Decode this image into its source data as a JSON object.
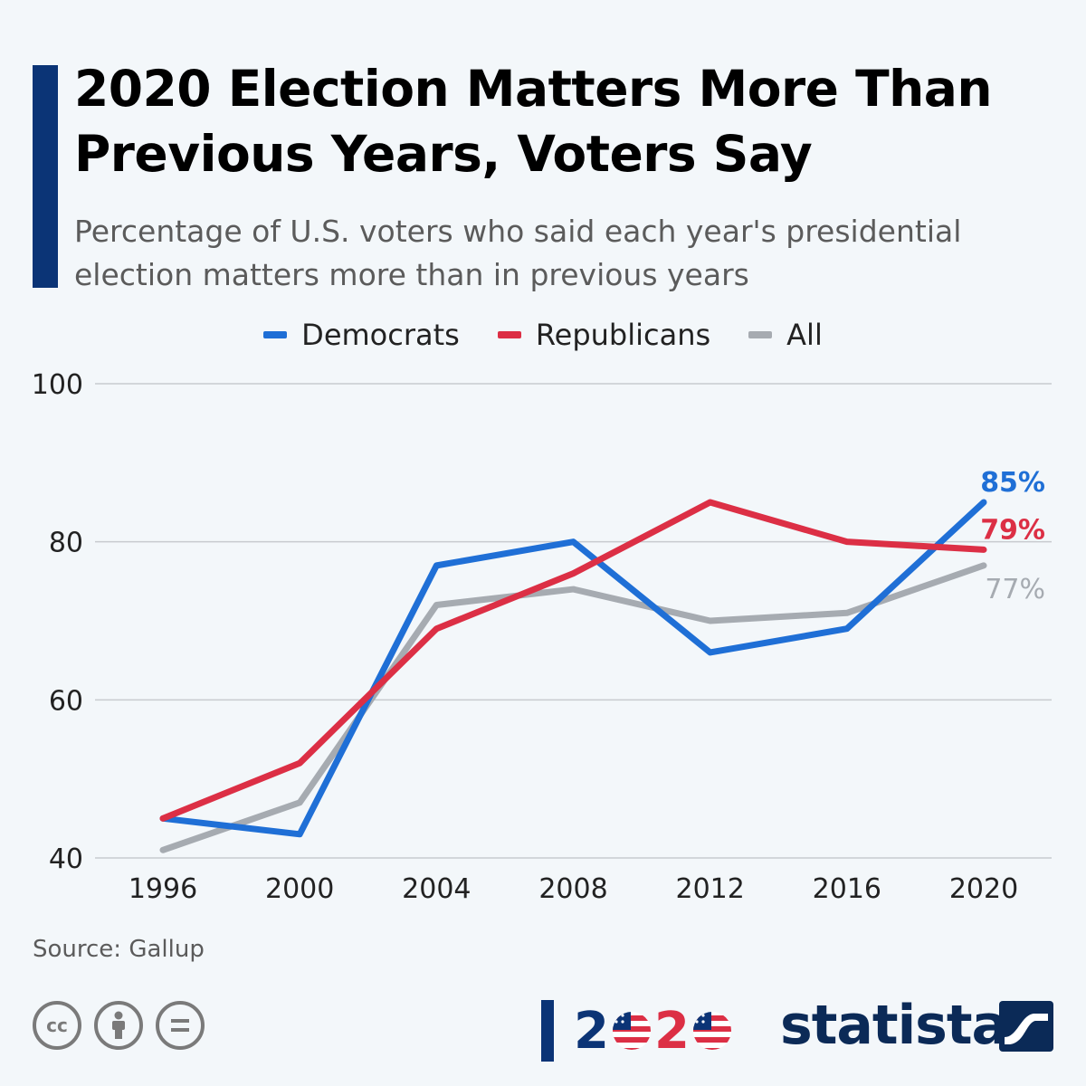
{
  "title": "2020 Election Matters More Than Previous Years, Voters Say",
  "subtitle": "Percentage of U.S. voters who said each year's presidential election matters more than in previous years",
  "source": "Source: Gallup",
  "brand": "statista",
  "logo": {
    "digits": [
      "2",
      "2"
    ]
  },
  "colors": {
    "democrats": "#1f6fd6",
    "republicans": "#dc2f45",
    "all": "#a6abb1",
    "navy": "#0b3476",
    "grid": "#c8cbcf"
  },
  "chart_data": {
    "type": "line",
    "title": "2020 Election Matters More Than Previous Years, Voters Say",
    "xlabel": "",
    "ylabel": "",
    "categories": [
      "1996",
      "2000",
      "2004",
      "2008",
      "2012",
      "2016",
      "2020"
    ],
    "ylim": [
      40,
      100
    ],
    "yticks": [
      "100",
      "80",
      "60",
      "40"
    ],
    "grid": true,
    "legend_position": "top-center",
    "series": [
      {
        "name": "Democrats",
        "values": [
          45,
          43,
          77,
          80,
          66,
          69,
          85
        ],
        "end_label": "85%"
      },
      {
        "name": "Republicans",
        "values": [
          45,
          52,
          69,
          76,
          85,
          80,
          79
        ],
        "end_label": "79%"
      },
      {
        "name": "All",
        "values": [
          41,
          47,
          72,
          74,
          70,
          71,
          77
        ],
        "end_label": "77%"
      }
    ]
  }
}
